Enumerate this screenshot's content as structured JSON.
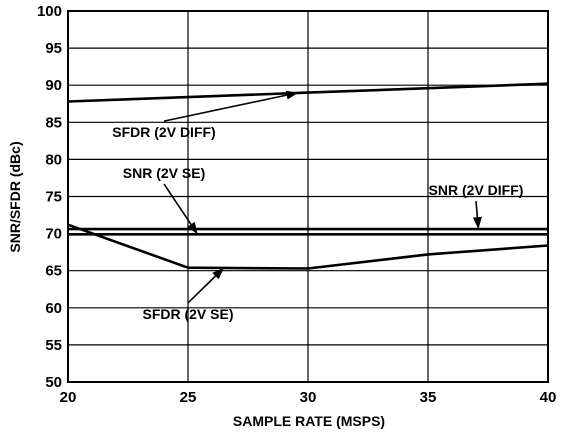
{
  "chart_data": {
    "type": "line",
    "xlabel": "SAMPLE RATE (MSPS)",
    "ylabel": "SNR/SFDR (dBc)",
    "xlim": [
      20,
      40
    ],
    "ylim": [
      50,
      100
    ],
    "grid": true,
    "x_ticks": [
      "20",
      "25",
      "30",
      "35",
      "40"
    ],
    "y_ticks": [
      "50",
      "55",
      "60",
      "65",
      "70",
      "75",
      "80",
      "85",
      "90",
      "95",
      "100"
    ],
    "series": [
      {
        "name": "SFDR (2V DIFF)",
        "x": [
          20,
          25,
          30,
          35,
          40
        ],
        "y": [
          87.8,
          88.4,
          89.0,
          89.6,
          90.2
        ]
      },
      {
        "name": "SNR (2V SE)",
        "x": [
          20,
          25,
          30,
          35,
          40
        ],
        "y": [
          69.9,
          69.9,
          69.9,
          69.9,
          69.9
        ]
      },
      {
        "name": "SNR (2V DIFF)",
        "x": [
          20,
          25,
          30,
          35,
          40
        ],
        "y": [
          70.6,
          70.6,
          70.6,
          70.6,
          70.6
        ]
      },
      {
        "name": "SFDR (2V SE)",
        "x": [
          20,
          25,
          30,
          35,
          40
        ],
        "y": [
          71.2,
          65.4,
          65.3,
          67.2,
          68.4
        ]
      }
    ],
    "annotations": [
      {
        "text": "SFDR (2V DIFF)",
        "target_x": 29.6,
        "target_y": 89.0,
        "label_x": 24.0,
        "label_y": 83.0
      },
      {
        "text": "SNR (2V SE)",
        "target_x": 25.4,
        "target_y": 69.9,
        "label_x": 24.0,
        "label_y": 77.5
      },
      {
        "text": "SNR (2V DIFF)",
        "target_x": 37.1,
        "target_y": 70.6,
        "label_x": 37.0,
        "label_y": 75.2
      },
      {
        "text": "SFDR (2V SE)",
        "target_x": 26.5,
        "target_y": 65.4,
        "label_x": 25.0,
        "label_y": 58.5
      }
    ]
  }
}
